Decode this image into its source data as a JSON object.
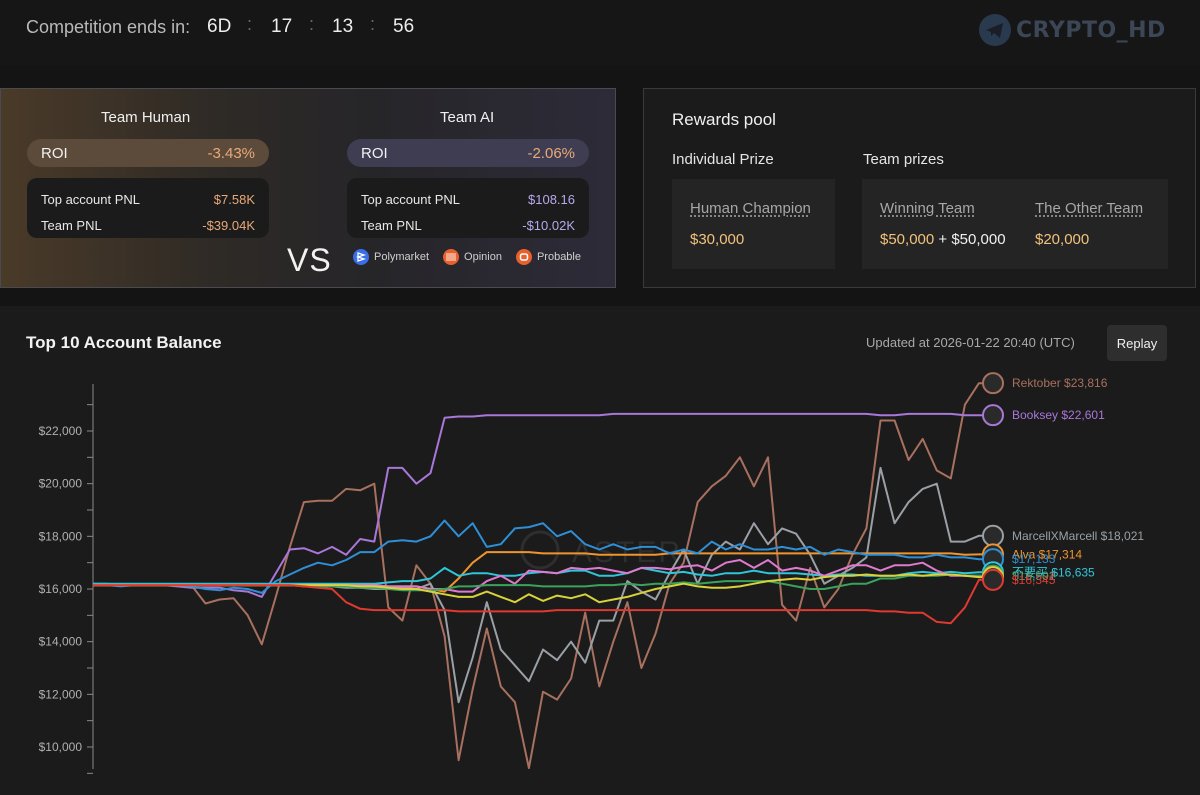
{
  "countdown": {
    "label": "Competition ends in:",
    "days": "6D",
    "hours": "17",
    "minutes": "13",
    "seconds": "56",
    "separator": ":"
  },
  "logo": {
    "text": "CRYPTO_HD",
    "icon": "telegram-icon"
  },
  "teams": {
    "human": {
      "title": "Team Human",
      "roi_label": "ROI",
      "roi": "-3.43%",
      "top_pnl_label": "Top account PNL",
      "top_pnl": "$7.58K",
      "team_pnl_label": "Team PNL",
      "team_pnl": "-$39.04K"
    },
    "vs": "VS",
    "ai": {
      "title": "Team AI",
      "roi_label": "ROI",
      "roi": "-2.06%",
      "top_pnl_label": "Top account PNL",
      "top_pnl": "$108.16",
      "team_pnl_label": "Team PNL",
      "team_pnl": "-$10.02K"
    },
    "sources": [
      {
        "name": "Polymarket",
        "color": "#3a6ee8"
      },
      {
        "name": "Opinion",
        "color": "#e8612c"
      },
      {
        "name": "Probable",
        "color": "#e8612c"
      }
    ]
  },
  "rewards": {
    "title": "Rewards pool",
    "individual_label": "Individual Prize",
    "team_label": "Team prizes",
    "champion": {
      "name": "Human Champion",
      "value": "$30,000"
    },
    "winning": {
      "name": "Winning Team",
      "value_a": "$50,000",
      "plus": "+",
      "value_b": "$50,000"
    },
    "other": {
      "name": "The Other Team",
      "value": "$20,000"
    }
  },
  "balance": {
    "title": "Top 10 Account Balance",
    "updated": "Updated at 2026-01-22 20:40 (UTC)",
    "replay": "Replay",
    "watermark": "ASTER"
  },
  "chart_data": {
    "type": "line",
    "title": "Top 10 Account Balance",
    "ylim": [
      9000,
      24000
    ],
    "yticks": [
      10000,
      12000,
      14000,
      16000,
      18000,
      20000,
      22000
    ],
    "ytick_labels": [
      "$10,000",
      "$12,000",
      "$14,000",
      "$16,000",
      "$18,000",
      "$20,000",
      "$22,000"
    ],
    "x_count": 65,
    "series": [
      {
        "name": "Rektober",
        "label": "Rektober $23,816",
        "color": "#a8705e",
        "values": [
          16150,
          16150,
          16150,
          16150,
          16150,
          16150,
          16150,
          16150,
          15450,
          15600,
          15650,
          15000,
          13900,
          15700,
          17600,
          19300,
          19350,
          19350,
          19800,
          19750,
          20000,
          15300,
          14800,
          16900,
          16200,
          14200,
          9500,
          12200,
          14500,
          12300,
          11700,
          9200,
          12100,
          11800,
          12600,
          15100,
          12300,
          14000,
          15500,
          13000,
          14300,
          16200,
          17000,
          19300,
          19900,
          20300,
          21000,
          19900,
          21000,
          15400,
          14800,
          16800,
          15300,
          16000,
          17300,
          18300,
          22400,
          22400,
          20900,
          21700,
          20500,
          20200,
          23000,
          23816,
          23816
        ]
      },
      {
        "name": "Booksey",
        "label": "Booksey $22,601",
        "color": "#a877d8",
        "values": [
          16200,
          16200,
          16150,
          16150,
          16150,
          16150,
          16100,
          16050,
          16050,
          16050,
          15950,
          15900,
          15700,
          16600,
          17500,
          17550,
          17350,
          17600,
          17300,
          17900,
          17800,
          20600,
          20600,
          20000,
          20400,
          22500,
          22550,
          22550,
          22600,
          22600,
          22600,
          22600,
          22600,
          22600,
          22600,
          22600,
          22600,
          22650,
          22650,
          22650,
          22650,
          22650,
          22650,
          22650,
          22650,
          22650,
          22650,
          22650,
          22650,
          22650,
          22650,
          22650,
          22650,
          22650,
          22650,
          22650,
          22600,
          22600,
          22650,
          22650,
          22650,
          22650,
          22600,
          22601,
          22601
        ]
      },
      {
        "name": "MarcellXMarcell",
        "label": "MarcellXMarcell $18,021",
        "color": "#9aa0a6",
        "values": [
          16150,
          16150,
          16150,
          16150,
          16150,
          16150,
          16150,
          16150,
          16150,
          16150,
          16150,
          16150,
          16150,
          16150,
          16150,
          16100,
          16100,
          16100,
          16050,
          16050,
          16000,
          16000,
          16050,
          16000,
          16200,
          15200,
          11700,
          13400,
          15500,
          13700,
          13100,
          12500,
          13700,
          13300,
          14000,
          13200,
          14800,
          14800,
          16300,
          15900,
          15600,
          16600,
          17500,
          16200,
          17300,
          17800,
          17500,
          18500,
          17700,
          18300,
          18100,
          17300,
          16200,
          16500,
          16800,
          17200,
          20600,
          18500,
          19300,
          19800,
          20000,
          17800,
          17800,
          18021,
          18021
        ]
      },
      {
        "name": "Alva",
        "label": "Alva $17,314",
        "color": "#f0952e",
        "values": [
          16150,
          16150,
          16150,
          16150,
          16150,
          16150,
          16150,
          16150,
          16150,
          16150,
          16150,
          16150,
          16150,
          16150,
          16150,
          16150,
          16150,
          16150,
          16150,
          16150,
          16150,
          16100,
          16100,
          16100,
          16000,
          15900,
          16400,
          17000,
          17400,
          17400,
          17400,
          17400,
          17350,
          17350,
          17350,
          17350,
          17300,
          17300,
          17300,
          17300,
          17300,
          17350,
          17350,
          17350,
          17350,
          17350,
          17350,
          17350,
          17350,
          17350,
          17350,
          17350,
          17350,
          17350,
          17350,
          17350,
          17350,
          17350,
          17350,
          17350,
          17350,
          17350,
          17300,
          17314,
          17314
        ]
      },
      {
        "name": "Blue",
        "label": "$17,133",
        "color": "#2f8fd6",
        "values": [
          16200,
          16150,
          16100,
          16150,
          16150,
          16150,
          16150,
          16100,
          16000,
          15950,
          16050,
          16000,
          15850,
          16300,
          16550,
          16800,
          17000,
          16900,
          17100,
          17400,
          17400,
          17800,
          17850,
          17800,
          18000,
          18600,
          18000,
          18500,
          17600,
          17700,
          18300,
          18350,
          18500,
          18000,
          18200,
          17700,
          17500,
          17700,
          17500,
          17600,
          17600,
          17350,
          17500,
          17350,
          17800,
          17500,
          17700,
          17500,
          17500,
          17600,
          17500,
          17600,
          17300,
          17500,
          17400,
          17300,
          17300,
          17300,
          17200,
          17200,
          17300,
          17200,
          17200,
          17133,
          17133
        ]
      },
      {
        "name": "Cyan",
        "label": "不要买 $16,635",
        "color": "#2ec6da",
        "values": [
          16200,
          16200,
          16200,
          16200,
          16200,
          16200,
          16200,
          16200,
          16200,
          16200,
          16200,
          16200,
          16200,
          16200,
          16200,
          16200,
          16200,
          16200,
          16200,
          16200,
          16200,
          16250,
          16300,
          16300,
          16400,
          16800,
          16500,
          16600,
          16600,
          16500,
          16500,
          16600,
          16650,
          16600,
          16700,
          16700,
          16500,
          16500,
          16600,
          16800,
          16700,
          16600,
          16650,
          16550,
          16500,
          16600,
          16600,
          16700,
          16600,
          16600,
          16600,
          16550,
          16500,
          16550,
          16550,
          16500,
          16500,
          16500,
          16600,
          16650,
          16600,
          16650,
          16600,
          16635,
          16635
        ]
      },
      {
        "name": "Pink",
        "label": "$16,501",
        "color": "#e07ad0",
        "values": [
          16150,
          16150,
          16150,
          16150,
          16150,
          16150,
          16150,
          16150,
          16150,
          16150,
          16150,
          16150,
          16150,
          16150,
          16150,
          16150,
          16150,
          16150,
          16150,
          16150,
          16150,
          16100,
          16100,
          16100,
          16000,
          16000,
          15900,
          15900,
          16300,
          16500,
          16200,
          16700,
          16650,
          16600,
          16800,
          16750,
          16800,
          16700,
          16600,
          16800,
          16800,
          16750,
          16850,
          16900,
          16700,
          17000,
          17100,
          16800,
          17100,
          16700,
          16800,
          16700,
          16500,
          16700,
          16900,
          16900,
          16700,
          16900,
          16900,
          17000,
          16700,
          16500,
          16500,
          16501,
          16501
        ]
      },
      {
        "name": "Green",
        "label": "$16,502",
        "color": "#3aa35a",
        "values": [
          16150,
          16150,
          16150,
          16150,
          16150,
          16150,
          16150,
          16150,
          16150,
          16150,
          16150,
          16150,
          16150,
          16150,
          16150,
          16150,
          16100,
          16100,
          16100,
          16050,
          16050,
          16000,
          15950,
          15950,
          15950,
          16000,
          16100,
          16100,
          16150,
          16150,
          16150,
          16150,
          16100,
          16100,
          16100,
          16100,
          16150,
          16150,
          16200,
          16150,
          16200,
          16200,
          16250,
          16200,
          16250,
          16300,
          16300,
          16300,
          16300,
          16200,
          16100,
          16000,
          16000,
          16100,
          16200,
          16200,
          16400,
          16400,
          16500,
          16500,
          16500,
          16550,
          16500,
          16502,
          16502
        ]
      },
      {
        "name": "Yellow",
        "label": "",
        "color": "#d9d23a",
        "values": [
          16150,
          16150,
          16150,
          16150,
          16150,
          16150,
          16150,
          16150,
          16150,
          16150,
          16150,
          16150,
          16150,
          16150,
          16150,
          16150,
          16150,
          16150,
          16150,
          16100,
          16100,
          16050,
          16000,
          16000,
          15900,
          15800,
          15700,
          15700,
          15900,
          15700,
          15500,
          15800,
          15550,
          15750,
          15650,
          15800,
          15500,
          15600,
          15700,
          15850,
          16000,
          16100,
          16200,
          16100,
          16050,
          16050,
          16100,
          16200,
          16300,
          16350,
          16400,
          16350,
          16450,
          16500,
          16500,
          16550,
          16500,
          16500,
          16550,
          16500,
          16550,
          16550,
          16500,
          16450,
          16450
        ]
      },
      {
        "name": "Red",
        "label": "$16,345",
        "color": "#e0392f",
        "values": [
          16150,
          16150,
          16150,
          16150,
          16150,
          16150,
          16150,
          16150,
          16150,
          16150,
          16150,
          16150,
          16150,
          16150,
          16150,
          16100,
          16050,
          16000,
          15500,
          15250,
          15200,
          15200,
          15200,
          15200,
          15200,
          15200,
          15150,
          15150,
          15150,
          15150,
          15150,
          15150,
          15150,
          15200,
          15200,
          15200,
          15200,
          15200,
          15200,
          15200,
          15200,
          15200,
          15200,
          15200,
          15200,
          15200,
          15200,
          15200,
          15200,
          15200,
          15200,
          15200,
          15200,
          15200,
          15200,
          15200,
          15150,
          15150,
          15100,
          15100,
          14750,
          14700,
          15300,
          16345,
          16345
        ]
      }
    ],
    "end_labels": [
      "Rektober $23,816",
      "Booksey $22,601",
      "MarcellXMarcell $18,021",
      "Alva $17,314",
      "不要买 $16,635"
    ]
  }
}
